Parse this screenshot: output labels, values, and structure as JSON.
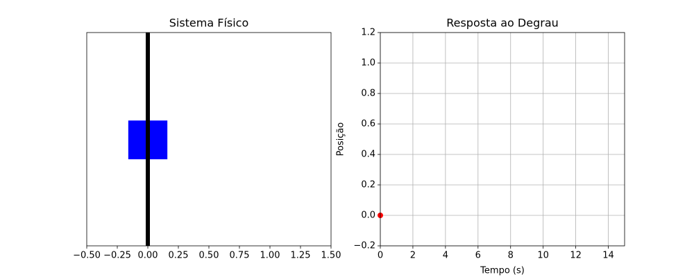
{
  "chart_data": [
    {
      "type": "schematic",
      "title": "Sistema Físico",
      "xlim": [
        -0.5,
        1.5
      ],
      "xticks": [
        {
          "value": -0.5,
          "label": "−0.50"
        },
        {
          "value": -0.25,
          "label": "−0.25"
        },
        {
          "value": 0,
          "label": "0.00"
        },
        0.25,
        {
          "value": 0.5,
          "label": "0.50"
        },
        0.75,
        {
          "value": 1,
          "label": "1.00"
        },
        1.25,
        {
          "value": 1.5,
          "label": "1.50"
        }
      ],
      "rod_x": 0,
      "rod_color": "#000000",
      "mass_x": [
        -0.16,
        0.16
      ],
      "mass_color": "#0000ff"
    },
    {
      "type": "scatter",
      "title": "Resposta ao Degrau",
      "x_label": "Tempo (s)",
      "y_label": "Posição",
      "xlim": [
        0,
        15
      ],
      "xticks": [
        0,
        2,
        4,
        6,
        8,
        10,
        12,
        14
      ],
      "ylim": [
        -0.2,
        1.2
      ],
      "yticks": [
        {
          "value": -0.2,
          "label": "−0.2"
        },
        {
          "value": 0,
          "label": "0.0"
        },
        0.2,
        0.4,
        0.6,
        0.8,
        {
          "value": 1,
          "label": "1.0"
        },
        1.2
      ],
      "grid": true,
      "series": [
        {
          "color": "#ff0000",
          "x": [
            0
          ],
          "values": [
            0
          ]
        }
      ]
    }
  ]
}
